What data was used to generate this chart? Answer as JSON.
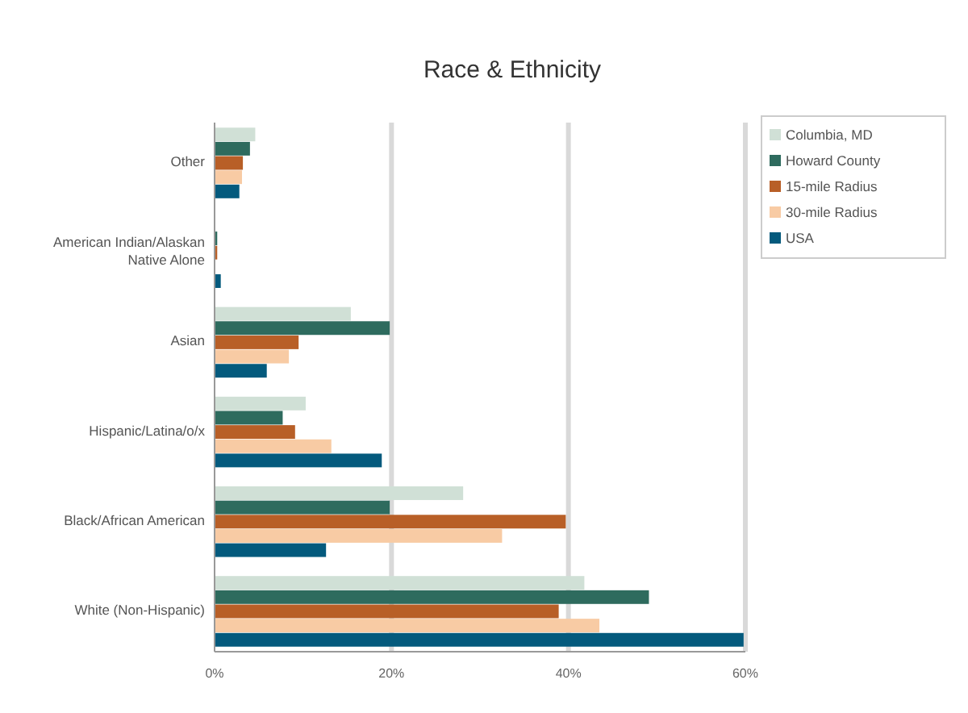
{
  "chart_data": {
    "type": "bar",
    "orientation": "horizontal",
    "title": "Race & Ethnicity",
    "categories": [
      "Other",
      "American Indian/Alaskan Native Alone",
      "Asian",
      "Hispanic/Latina/o/x",
      "Black/African American",
      "White (Non-Hispanic)"
    ],
    "series": [
      {
        "name": "Columbia, MD",
        "color": "#d0e0d6",
        "values": [
          4.6,
          null,
          15.4,
          10.3,
          28.1,
          41.8
        ]
      },
      {
        "name": "Howard County",
        "color": "#2e6b5e",
        "values": [
          4.0,
          0.3,
          19.8,
          7.7,
          19.8,
          49.1
        ]
      },
      {
        "name": "15-mile Radius",
        "color": "#b85f27",
        "values": [
          3.2,
          0.3,
          9.5,
          9.1,
          39.7,
          38.9
        ]
      },
      {
        "name": "30-mile Radius",
        "color": "#f8cba4",
        "values": [
          3.1,
          null,
          8.4,
          13.2,
          32.5,
          43.5
        ]
      },
      {
        "name": "USA",
        "color": "#045a7d",
        "values": [
          2.8,
          0.7,
          5.9,
          18.9,
          12.6,
          59.8
        ]
      }
    ],
    "xlim": [
      0,
      60
    ],
    "xticks": [
      {
        "value": 0,
        "label": "0%"
      },
      {
        "value": 20,
        "label": "20%"
      },
      {
        "value": 40,
        "label": "40%"
      },
      {
        "value": 60,
        "label": "60%"
      }
    ],
    "grid": "x",
    "legend": "top right"
  }
}
